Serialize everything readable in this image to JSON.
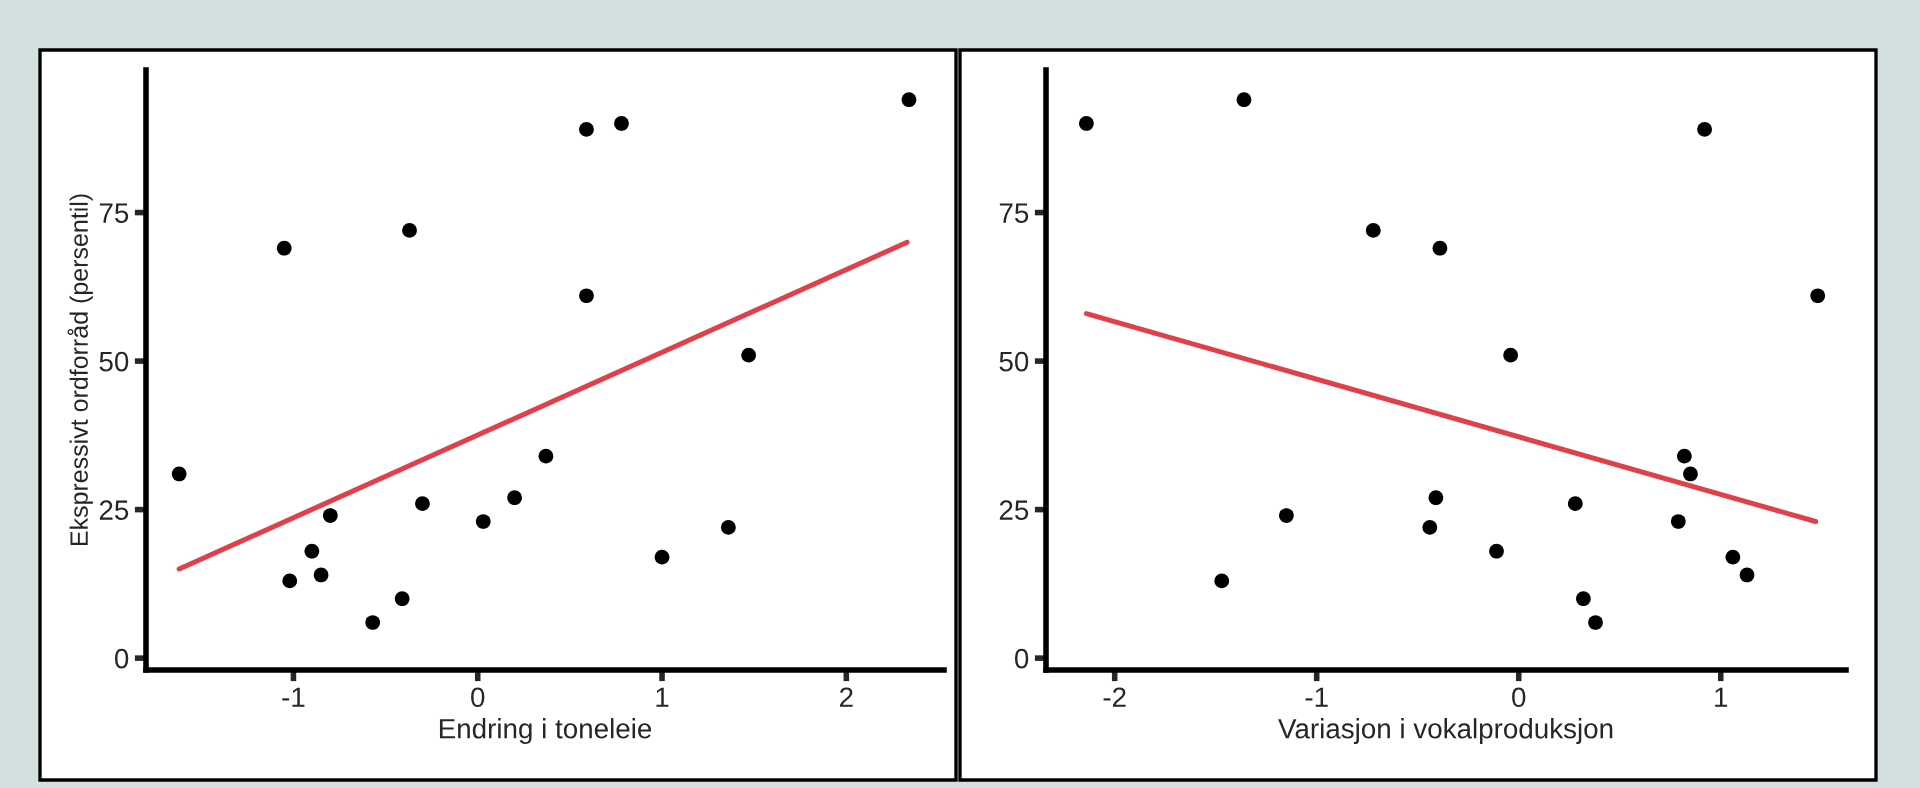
{
  "chart_data": [
    {
      "type": "scatter",
      "xlabel": "Endring i toneleie",
      "ylabel": "Ekspressivt ordforråd (persentil)",
      "xlim": [
        -1.8,
        2.53
      ],
      "ylim": [
        -2,
        99
      ],
      "xticks": [
        -1,
        0,
        1,
        2
      ],
      "yticks": [
        0,
        25,
        50,
        75
      ],
      "grid": false,
      "legend": false,
      "series": [
        {
          "marker": "circle",
          "color": "#000000",
          "x": [
            2.34,
            0.59,
            0.78,
            -1.05,
            -0.37,
            0.59,
            1.47,
            -1.62,
            -1.02,
            -0.9,
            -0.85,
            -0.8,
            -0.57,
            -0.41,
            -0.3,
            0.03,
            0.2,
            0.37,
            1.0,
            1.36
          ],
          "values": [
            94,
            89,
            90,
            69,
            72,
            61,
            51,
            31,
            13,
            18,
            14,
            24,
            6,
            10,
            26,
            23,
            27,
            34,
            17,
            22
          ]
        },
        {
          "type": "line",
          "marker": "none",
          "color": "#e0404a",
          "x": [
            -1.62,
            2.33
          ],
          "values": [
            15,
            70
          ]
        }
      ]
    },
    {
      "type": "scatter",
      "xlabel": "Variasjon i vokalproduksjon",
      "xlim": [
        -2.34,
        1.62
      ],
      "ylim": [
        -2,
        99
      ],
      "xticks": [
        -2,
        -1,
        0,
        1
      ],
      "yticks": [
        0,
        25,
        50,
        75
      ],
      "grid": false,
      "legend": false,
      "series": [
        {
          "marker": "circle",
          "color": "#000000",
          "x": [
            -2.14,
            -1.36,
            -0.72,
            -0.39,
            -0.04,
            0.92,
            1.48,
            -1.47,
            -1.15,
            -0.44,
            -0.41,
            -0.11,
            0.28,
            0.32,
            0.38,
            0.79,
            0.82,
            0.85,
            1.06,
            1.13
          ],
          "values": [
            90,
            94,
            72,
            69,
            51,
            89,
            61,
            13,
            24,
            22,
            27,
            18,
            26,
            10,
            6,
            23,
            34,
            31,
            17,
            14
          ]
        },
        {
          "type": "line",
          "marker": "none",
          "color": "#e0404a",
          "x": [
            -2.14,
            1.47
          ],
          "values": [
            58,
            23
          ]
        }
      ]
    }
  ]
}
